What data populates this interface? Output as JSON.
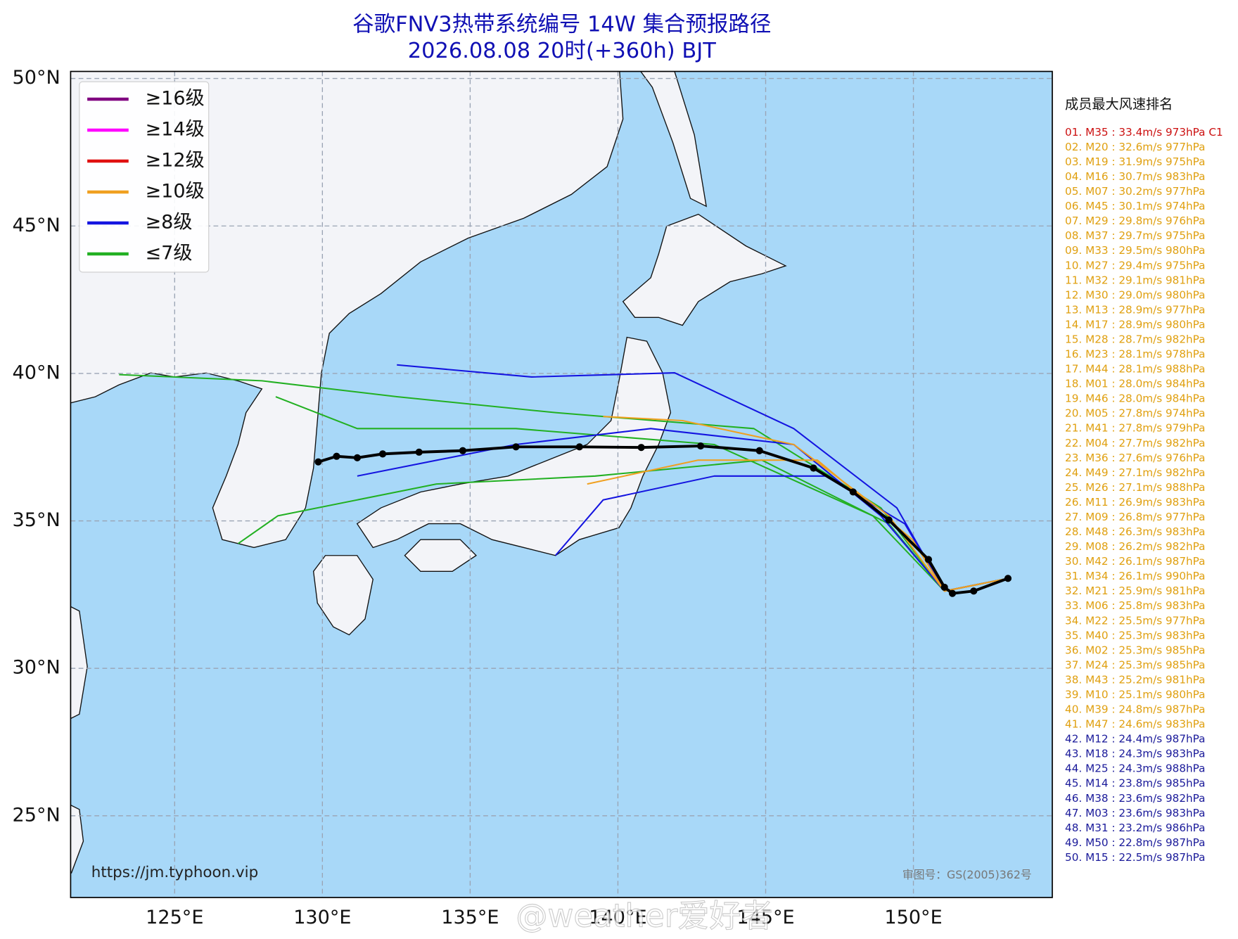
{
  "title": [
    "谷歌FNV3热带系统编号 14W 集合预报路径",
    "2026.08.08 20时(+360h) BJT"
  ],
  "map": {
    "xlim": [
      121.48,
      154.7
    ],
    "ylim": [
      22.23,
      50.24
    ],
    "xticks": [
      {
        "value": 125,
        "label": "125°E"
      },
      {
        "value": 130,
        "label": "130°E"
      },
      {
        "value": 135,
        "label": "135°E"
      },
      {
        "value": 140,
        "label": "140°E"
      },
      {
        "value": 145,
        "label": "145°E"
      },
      {
        "value": 150,
        "label": "150°E"
      }
    ],
    "yticks": [
      {
        "value": 25,
        "label": "25°N"
      },
      {
        "value": 30,
        "label": "30°N"
      },
      {
        "value": 35,
        "label": "35°N"
      },
      {
        "value": 40,
        "label": "40°N"
      },
      {
        "value": 45,
        "label": "45°N"
      },
      {
        "value": 50,
        "label": "50°N"
      }
    ],
    "grid": true,
    "members": [
      {
        "color": "#22b022",
        "lon": [
          153.2,
          151.05,
          148.9,
          144.6,
          137.89,
          132.52,
          127.95,
          123.12
        ],
        "lat": [
          33.05,
          32.62,
          35.44,
          38.13,
          38.67,
          39.21,
          39.75,
          39.96
        ]
      },
      {
        "color": "#22b022",
        "lon": [
          153.2,
          151.05,
          149.17,
          144.87,
          139.23,
          133.86,
          128.49,
          127.15
        ],
        "lat": [
          33.05,
          32.62,
          34.9,
          37.06,
          36.52,
          36.25,
          35.17,
          34.23
        ]
      },
      {
        "color": "#22b022",
        "lon": [
          153.2,
          151.05,
          148.63,
          143.26,
          136.55,
          131.18,
          128.42
        ],
        "lat": [
          33.05,
          32.62,
          35.17,
          37.59,
          38.13,
          38.13,
          39.21
        ]
      },
      {
        "color": "#1414e0",
        "lon": [
          153.2,
          151.05,
          149.44,
          145.95,
          141.92,
          137.08,
          132.52
        ],
        "lat": [
          33.05,
          32.62,
          35.44,
          38.13,
          40.02,
          39.88,
          40.29
        ]
      },
      {
        "color": "#1414e0",
        "lon": [
          153.2,
          151.05,
          148.9,
          145.95,
          141.11,
          136.55,
          131.18
        ],
        "lat": [
          33.05,
          32.62,
          35.17,
          37.59,
          38.13,
          37.59,
          36.52
        ]
      },
      {
        "color": "#1414e0",
        "lon": [
          153.2,
          151.05,
          149.71,
          147.02,
          143.26,
          139.5,
          137.89
        ],
        "lat": [
          33.05,
          32.62,
          34.9,
          36.52,
          36.52,
          35.71,
          33.83
        ]
      },
      {
        "color": "#f0a020",
        "lon": [
          153.2,
          151.05,
          149.97,
          146.75,
          142.72,
          138.96
        ],
        "lat": [
          33.05,
          32.62,
          34.36,
          37.06,
          37.06,
          36.25
        ]
      },
      {
        "color": "#f0a020",
        "lon": [
          153.2,
          151.05,
          149.17,
          145.95,
          142.19,
          139.5
        ],
        "lat": [
          33.05,
          32.62,
          35.17,
          37.59,
          38.4,
          38.54
        ]
      }
    ],
    "mean_track": {
      "color": "#000000",
      "lon": [
        153.2,
        152.04,
        151.32,
        151.05,
        150.51,
        149.17,
        147.96,
        146.62,
        144.79,
        142.8,
        140.79,
        138.7,
        136.55,
        134.75,
        133.27,
        132.04,
        131.18,
        130.48,
        129.86
      ],
      "lat": [
        33.05,
        32.62,
        32.54,
        32.75,
        33.69,
        35.03,
        35.98,
        36.79,
        37.38,
        37.54,
        37.49,
        37.51,
        37.51,
        37.38,
        37.33,
        37.27,
        37.14,
        37.19,
        37.0
      ]
    }
  },
  "legend": [
    {
      "label": "≥16级",
      "color": "#800080"
    },
    {
      "label": "≥14级",
      "color": "#ff00ff"
    },
    {
      "label": "≥12级",
      "color": "#e01010"
    },
    {
      "label": "≥10级",
      "color": "#f0a020"
    },
    {
      "label": "≥8级",
      "color": "#1414e0"
    },
    {
      "label": "≤7级",
      "color": "#22b022"
    }
  ],
  "ranking": {
    "title": "成员最大风速排名",
    "entries": [
      {
        "text": "01. M35 : 33.4m/s 973hPa C1",
        "color": "#cc1010"
      },
      {
        "text": "02. M20 : 32.6m/s 977hPa",
        "color": "#e0a010"
      },
      {
        "text": "03. M19 : 31.9m/s 975hPa",
        "color": "#e0a010"
      },
      {
        "text": "04. M16 : 30.7m/s 983hPa",
        "color": "#e0a010"
      },
      {
        "text": "05. M07 : 30.2m/s 977hPa",
        "color": "#e0a010"
      },
      {
        "text": "06. M45 : 30.1m/s 974hPa",
        "color": "#e0a010"
      },
      {
        "text": "07. M29 : 29.8m/s 976hPa",
        "color": "#e0a010"
      },
      {
        "text": "08. M37 : 29.7m/s 975hPa",
        "color": "#e0a010"
      },
      {
        "text": "09. M33 : 29.5m/s 980hPa",
        "color": "#e0a010"
      },
      {
        "text": "10. M27 : 29.4m/s 975hPa",
        "color": "#e0a010"
      },
      {
        "text": "11. M32 : 29.1m/s 981hPa",
        "color": "#e0a010"
      },
      {
        "text": "12. M30 : 29.0m/s 980hPa",
        "color": "#e0a010"
      },
      {
        "text": "13. M13 : 28.9m/s 977hPa",
        "color": "#e0a010"
      },
      {
        "text": "14. M17 : 28.9m/s 980hPa",
        "color": "#e0a010"
      },
      {
        "text": "15. M28 : 28.7m/s 982hPa",
        "color": "#e0a010"
      },
      {
        "text": "16. M23 : 28.1m/s 978hPa",
        "color": "#e0a010"
      },
      {
        "text": "17. M44 : 28.1m/s 988hPa",
        "color": "#e0a010"
      },
      {
        "text": "18. M01 : 28.0m/s 984hPa",
        "color": "#e0a010"
      },
      {
        "text": "19. M46 : 28.0m/s 984hPa",
        "color": "#e0a010"
      },
      {
        "text": "20. M05 : 27.8m/s 974hPa",
        "color": "#e0a010"
      },
      {
        "text": "21. M41 : 27.8m/s 979hPa",
        "color": "#e0a010"
      },
      {
        "text": "22. M04 : 27.7m/s 982hPa",
        "color": "#e0a010"
      },
      {
        "text": "23. M36 : 27.6m/s 976hPa",
        "color": "#e0a010"
      },
      {
        "text": "24. M49 : 27.1m/s 982hPa",
        "color": "#e0a010"
      },
      {
        "text": "25. M26 : 27.1m/s 988hPa",
        "color": "#e0a010"
      },
      {
        "text": "26. M11 : 26.9m/s 983hPa",
        "color": "#e0a010"
      },
      {
        "text": "27. M09 : 26.8m/s 977hPa",
        "color": "#e0a010"
      },
      {
        "text": "28. M48 : 26.3m/s 983hPa",
        "color": "#e0a010"
      },
      {
        "text": "29. M08 : 26.2m/s 982hPa",
        "color": "#e0a010"
      },
      {
        "text": "30. M42 : 26.1m/s 987hPa",
        "color": "#e0a010"
      },
      {
        "text": "31. M34 : 26.1m/s 990hPa",
        "color": "#e0a010"
      },
      {
        "text": "32. M21 : 25.9m/s 981hPa",
        "color": "#e0a010"
      },
      {
        "text": "33. M06 : 25.8m/s 983hPa",
        "color": "#e0a010"
      },
      {
        "text": "34. M22 : 25.5m/s 977hPa",
        "color": "#e0a010"
      },
      {
        "text": "35. M40 : 25.3m/s 983hPa",
        "color": "#e0a010"
      },
      {
        "text": "36. M02 : 25.3m/s 985hPa",
        "color": "#e0a010"
      },
      {
        "text": "37. M24 : 25.3m/s 985hPa",
        "color": "#e0a010"
      },
      {
        "text": "38. M43 : 25.2m/s 981hPa",
        "color": "#e0a010"
      },
      {
        "text": "39. M10 : 25.1m/s 980hPa",
        "color": "#e0a010"
      },
      {
        "text": "40. M39 : 24.8m/s 987hPa",
        "color": "#e0a010"
      },
      {
        "text": "41. M47 : 24.6m/s 983hPa",
        "color": "#e0a010"
      },
      {
        "text": "42. M12 : 24.4m/s 987hPa",
        "color": "#1a1a9a"
      },
      {
        "text": "43. M18 : 24.3m/s 983hPa",
        "color": "#1a1a9a"
      },
      {
        "text": "44. M25 : 24.3m/s 988hPa",
        "color": "#1a1a9a"
      },
      {
        "text": "45. M14 : 23.8m/s 985hPa",
        "color": "#1a1a9a"
      },
      {
        "text": "46. M38 : 23.6m/s 982hPa",
        "color": "#1a1a9a"
      },
      {
        "text": "47. M03 : 23.6m/s 983hPa",
        "color": "#1a1a9a"
      },
      {
        "text": "48. M31 : 23.2m/s 986hPa",
        "color": "#1a1a9a"
      },
      {
        "text": "49. M50 : 22.8m/s 987hPa",
        "color": "#1a1a9a"
      },
      {
        "text": "50. M15 : 22.5m/s 987hPa",
        "color": "#1a1a9a"
      }
    ]
  },
  "source_url": "https://jm.typhoon.vip",
  "map_approval": "审图号：GS(2005)362号",
  "watermark": "@weather爱好者"
}
